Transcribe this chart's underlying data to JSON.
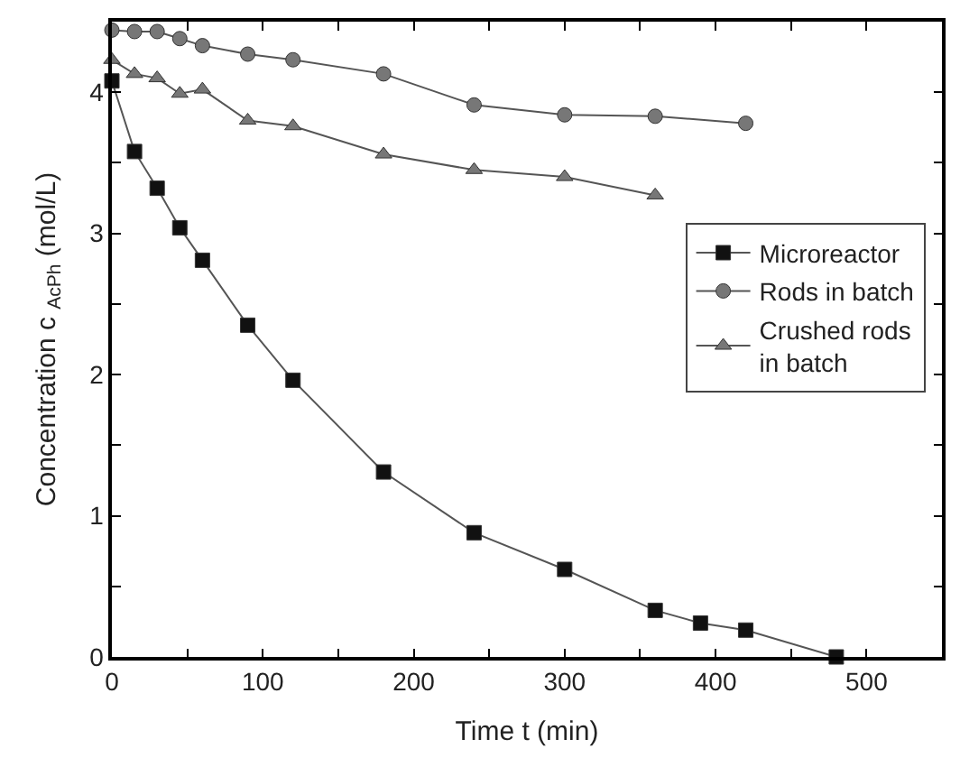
{
  "chart_data": {
    "type": "line",
    "xlabel": "Time t (min)",
    "ylabel": "Concentration c $_{AcPh}$ (mol/L)",
    "xlim": [
      0,
      550
    ],
    "ylim": [
      0,
      4.5
    ],
    "xticks": [
      0,
      {
        "value": 50,
        "label": null
      },
      100,
      {
        "value": 150,
        "label": null
      },
      200,
      {
        "value": 250,
        "label": null
      },
      300,
      {
        "value": 350,
        "label": null
      },
      400,
      {
        "value": 450,
        "label": null
      },
      500
    ],
    "yticks": [
      0,
      {
        "value": 0.5,
        "label": null
      },
      1,
      {
        "value": 1.5,
        "label": null
      },
      2,
      {
        "value": 2.5,
        "label": null
      },
      3,
      {
        "value": 3.5,
        "label": null
      },
      4
    ],
    "legend": "right",
    "series": [
      {
        "name": "Microreactor",
        "color": "#111111",
        "marker": "square",
        "x": [
          0,
          15,
          30,
          45,
          60,
          90,
          120,
          180,
          240,
          300,
          360,
          390,
          420,
          480
        ],
        "values": [
          4.08,
          3.58,
          3.32,
          3.04,
          2.81,
          2.35,
          1.96,
          1.31,
          0.88,
          0.62,
          0.33,
          0.24,
          0.19,
          0.0
        ]
      },
      {
        "name": "Rods in batch",
        "color": "#777777",
        "marker": "circle",
        "x": [
          0,
          15,
          30,
          45,
          60,
          90,
          120,
          180,
          240,
          300,
          360,
          420
        ],
        "values": [
          4.44,
          4.43,
          4.43,
          4.38,
          4.33,
          4.27,
          4.23,
          4.13,
          3.91,
          3.84,
          3.83,
          3.78
        ]
      },
      {
        "name": "Crushed rods\nin batch",
        "color": "#777777",
        "marker": "triangle",
        "x": [
          0,
          15,
          30,
          45,
          60,
          90,
          120,
          180,
          240,
          300,
          360
        ],
        "values": [
          4.23,
          4.13,
          4.1,
          3.99,
          4.02,
          3.8,
          3.76,
          3.56,
          3.45,
          3.4,
          3.27
        ]
      }
    ]
  }
}
